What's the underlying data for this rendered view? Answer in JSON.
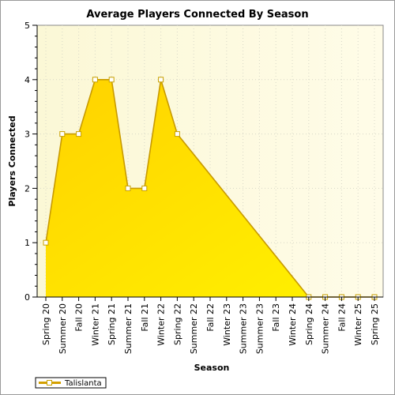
{
  "chart_data": {
    "type": "area",
    "title": "Average Players Connected By Season",
    "xlabel": "Season",
    "ylabel": "Players Connected",
    "ylim": [
      0,
      5
    ],
    "yticks": [
      "0",
      "1",
      "2",
      "3",
      "4",
      "5"
    ],
    "grid": true,
    "legend_position": "bottom-left",
    "categories": [
      "Spring 20",
      "Summer 20",
      "Fall 20",
      "Winter 21",
      "Spring 21",
      "Summer 21",
      "Fall 21",
      "Winter 22",
      "Spring 22",
      "Summer 22",
      "Fall 22",
      "Winter 23",
      "Summer 23",
      "Summer 23",
      "Fall 23",
      "Winter 24",
      "Spring 24",
      "Summer 24",
      "Fall 24",
      "Winter 25",
      "Spring 25"
    ],
    "series": [
      {
        "name": "Talislanta",
        "color": "#ffd700",
        "values": [
          1,
          3,
          3,
          4,
          4,
          2,
          2,
          4,
          3,
          null,
          null,
          null,
          null,
          null,
          null,
          null,
          0,
          0,
          0,
          0,
          0
        ]
      }
    ]
  }
}
